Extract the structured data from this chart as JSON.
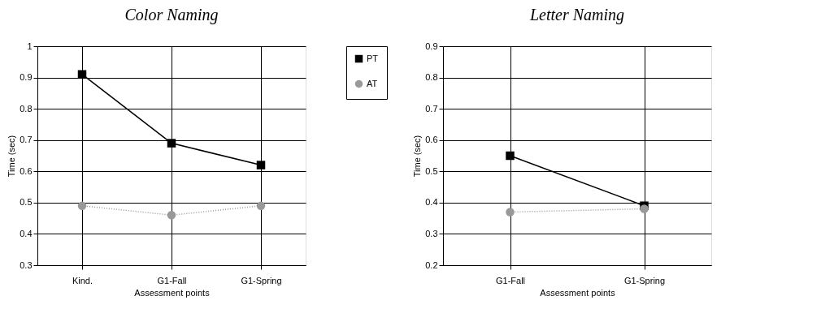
{
  "chart_data": [
    {
      "type": "line",
      "title": "Color Naming",
      "xlabel": "Assessment points",
      "ylabel": "Time (sec)",
      "categories": [
        "Kind.",
        "G1-Fall",
        "G1-Spring"
      ],
      "series": [
        {
          "name": "PT",
          "color": "#000000",
          "values": [
            0.91,
            0.69,
            0.62
          ],
          "marker": "square",
          "line_style": "solid"
        },
        {
          "name": "AT",
          "color": "#999999",
          "values": [
            0.49,
            0.46,
            0.49
          ],
          "marker": "circle",
          "line_style": "dotted"
        }
      ],
      "ylim": [
        0.3,
        1
      ],
      "yticks": [
        0.3,
        0.4,
        0.5,
        0.6,
        0.7,
        0.8,
        0.9,
        1
      ],
      "grid": true,
      "legend": "right"
    },
    {
      "type": "line",
      "title": "Letter Naming",
      "xlabel": "Assessment points",
      "ylabel": "Time (sec)",
      "categories": [
        "G1-Fall",
        "G1-Spring"
      ],
      "series": [
        {
          "name": "PT",
          "color": "#000000",
          "values": [
            0.55,
            0.39
          ],
          "marker": "square",
          "line_style": "solid"
        },
        {
          "name": "AT",
          "color": "#999999",
          "values": [
            0.37,
            0.38
          ],
          "marker": "circle",
          "line_style": "dotted"
        }
      ],
      "ylim": [
        0.2,
        0.9
      ],
      "yticks": [
        0.2,
        0.3,
        0.4,
        0.5,
        0.6,
        0.7,
        0.8,
        0.9
      ],
      "grid": true
    }
  ]
}
